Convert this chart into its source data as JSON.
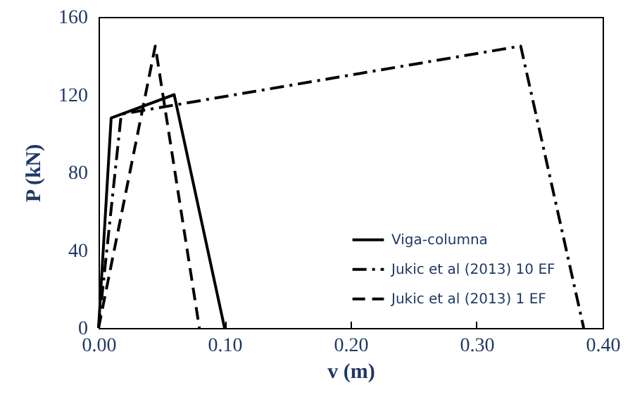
{
  "chart_data": {
    "type": "line",
    "xlabel": "v (m)",
    "ylabel": "P (kN)",
    "xlim": [
      0,
      0.4
    ],
    "ylim": [
      0,
      160
    ],
    "xticks": [
      {
        "value": 0,
        "label": "0.00"
      },
      {
        "value": 0.1,
        "label": "0.10"
      },
      {
        "value": 0.2,
        "label": "0.20"
      },
      {
        "value": 0.3,
        "label": "0.30"
      },
      {
        "value": 0.4,
        "label": "0.40"
      }
    ],
    "yticks": [
      0,
      40,
      80,
      120,
      160
    ],
    "grid": false,
    "legend": "right",
    "series": [
      {
        "name": "Viga-columna",
        "color": "#000000",
        "line_style": "solid",
        "x": [
          0,
          0.01,
          0.06,
          0.1
        ],
        "values": [
          0,
          108,
          120,
          0
        ]
      },
      {
        "name": "Jukic et al (2013) 10 EF",
        "color": "#000000",
        "line_style": "dashdot",
        "x": [
          0,
          0.018,
          0.335,
          0.385
        ],
        "values": [
          0,
          110,
          145,
          0
        ]
      },
      {
        "name": "Jukic et al (2013) 1 EF",
        "color": "#000000",
        "line_style": "dashed",
        "x": [
          0,
          0.045,
          0.08
        ],
        "values": [
          0,
          145,
          0
        ]
      }
    ]
  }
}
